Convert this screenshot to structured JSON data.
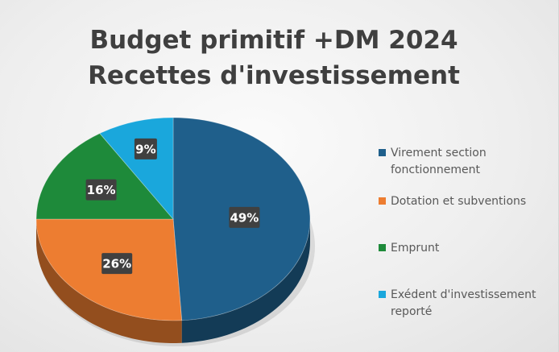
{
  "chart_data": {
    "type": "pie",
    "title": "Budget primitif +DM 2024",
    "subtitle": "Recettes d'investissement",
    "categories": [
      "Virement section fonctionnement",
      "Dotation et subventions",
      "Emprunt",
      "Exédent d'investissement reporté"
    ],
    "values": [
      49,
      26,
      16,
      9
    ],
    "data_labels": [
      "49%",
      "26%",
      "16%",
      "9%"
    ],
    "colors": [
      "#1f5f8b",
      "#ed7d31",
      "#1e8a3a",
      "#1aa7dc"
    ],
    "legend_position": "right",
    "style": "3d"
  }
}
